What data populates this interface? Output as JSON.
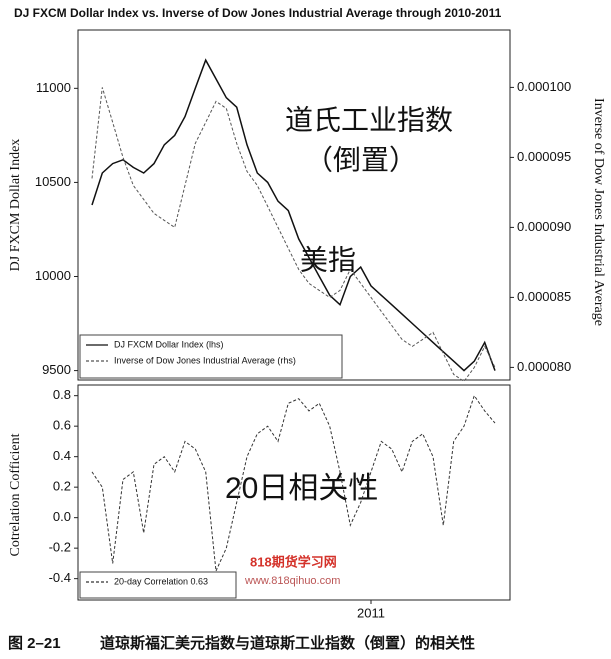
{
  "chart_data": [
    {
      "type": "line",
      "title": "DJ FXCM Dollar Index vs. Inverse of Dow Jones Industrial Average through 2010-2011",
      "y_label": "DJ FXCM Dollat Index",
      "y2_label": "Inverse of Dow Jones Industrial Average",
      "ylim": [
        9450,
        11310
      ],
      "yticks": [
        9500,
        10000,
        10500,
        11000
      ],
      "y2lim": [
        7.91e-05,
        0.0001041
      ],
      "y2ticks": [
        {
          "value": 8e-05,
          "label": "0.000080"
        },
        {
          "value": 8.5e-05,
          "label": "0.000085"
        },
        {
          "value": 9e-05,
          "label": "0.000090"
        },
        {
          "value": 9.5e-05,
          "label": "0.000095"
        },
        {
          "value": 0.0001,
          "label": "0.000100"
        }
      ],
      "legend": "lower left",
      "series": [
        {
          "name": "DJ FXCM Dollar Index (lhs)",
          "color": "#111111",
          "dash": false,
          "values": [
            10380,
            10550,
            10600,
            10620,
            10580,
            10550,
            10600,
            10700,
            10750,
            10850,
            11000,
            11150,
            11050,
            10950,
            10900,
            10700,
            10550,
            10500,
            10400,
            10350,
            10200,
            10100,
            10000,
            9900,
            9850,
            10000,
            10050,
            9950,
            9900,
            9850,
            9800,
            9750,
            9700,
            9650,
            9600,
            9550,
            9500,
            9550,
            9650,
            9500
          ]
        },
        {
          "name": "Inverse of Dow Jones Industrial Average (rhs)",
          "color": "#555555",
          "dash": true,
          "axis": "y2",
          "values": [
            9.35e-05,
            0.0001,
            9.75e-05,
            9.5e-05,
            9.3e-05,
            9.2e-05,
            9.1e-05,
            9.05e-05,
            9e-05,
            9.3e-05,
            9.6e-05,
            9.75e-05,
            9.9e-05,
            9.85e-05,
            9.6e-05,
            9.4e-05,
            9.3e-05,
            9.15e-05,
            9e-05,
            8.85e-05,
            8.7e-05,
            8.6e-05,
            8.55e-05,
            8.5e-05,
            8.55e-05,
            8.7e-05,
            8.6e-05,
            8.5e-05,
            8.4e-05,
            8.3e-05,
            8.2e-05,
            8.15e-05,
            8.2e-05,
            8.25e-05,
            8.1e-05,
            7.95e-05,
            7.9e-05,
            8e-05,
            8.15e-05,
            8e-05
          ]
        }
      ],
      "annotations": [
        "道氏工业指数",
        "（倒置）",
        "美指"
      ]
    },
    {
      "type": "line",
      "y_label": "Cotrelation Cofficient",
      "ylim": [
        -0.54,
        0.87
      ],
      "yticks": [
        -0.4,
        -0.2,
        {
          "value": 0,
          "label": "0.0"
        },
        0.2,
        0.4,
        0.6,
        0.8
      ],
      "categories": [
        null,
        null,
        null,
        null,
        null,
        null,
        null,
        null,
        null,
        null,
        null,
        null,
        null,
        null,
        null,
        null,
        null,
        null,
        null,
        null,
        null,
        null,
        null,
        null,
        null,
        null,
        null,
        "2011",
        null,
        null,
        null,
        null,
        null,
        null,
        null,
        null,
        null,
        null,
        null,
        null
      ],
      "legend": "lower left",
      "series": [
        {
          "name": "20-day Correlation 0.63",
          "color": "#333333",
          "dash": true,
          "values": [
            0.3,
            0.2,
            -0.3,
            0.25,
            0.3,
            -0.1,
            0.35,
            0.4,
            0.3,
            0.5,
            0.45,
            0.3,
            -0.35,
            -0.2,
            0.1,
            0.4,
            0.55,
            0.6,
            0.5,
            0.75,
            0.78,
            0.7,
            0.75,
            0.6,
            0.3,
            -0.05,
            0.1,
            0.3,
            0.5,
            0.45,
            0.3,
            0.5,
            0.55,
            0.4,
            -0.05,
            0.5,
            0.6,
            0.8,
            0.7,
            0.62
          ]
        }
      ],
      "annotations": [
        "20日相关性"
      ]
    }
  ],
  "watermark": {
    "name": "818期货学习网",
    "url": "www.818qihuo.com"
  },
  "caption": {
    "number": "图 2–21",
    "text": "道琼斯福汇美元指数与道琼斯工业指数（倒置）的相关性"
  }
}
